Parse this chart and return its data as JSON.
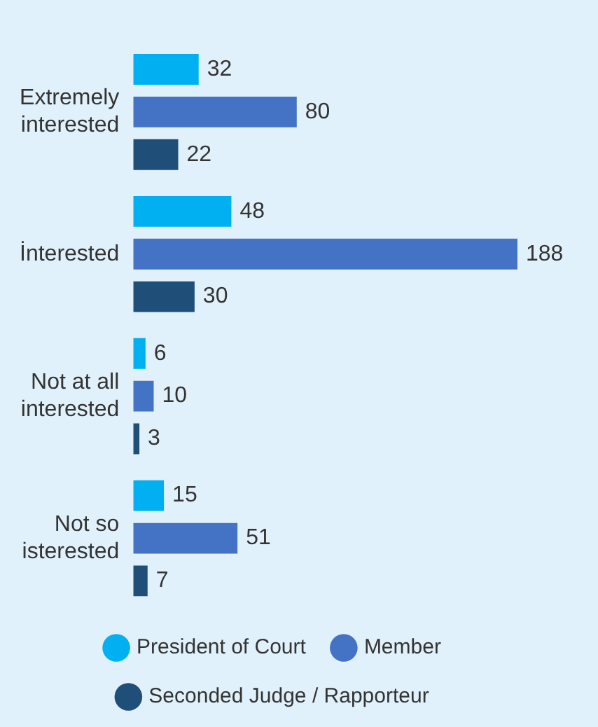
{
  "chart_data": {
    "type": "bar",
    "orientation": "horizontal",
    "data_labels": true,
    "legend": "bottom",
    "categories": [
      "Extremely interested",
      "İnterested",
      "Not at all interested",
      "Not so isterested"
    ],
    "series": [
      {
        "name": "President of Court",
        "color": "#00b0f0",
        "values": [
          32,
          48,
          6,
          15
        ]
      },
      {
        "name": "Member",
        "color": "#4472c4",
        "values": [
          80,
          188,
          10,
          51
        ]
      },
      {
        "name": "Seconded Judge / Rapporteur",
        "color": "#1f4e79",
        "values": [
          22,
          30,
          3,
          7
        ]
      }
    ]
  }
}
